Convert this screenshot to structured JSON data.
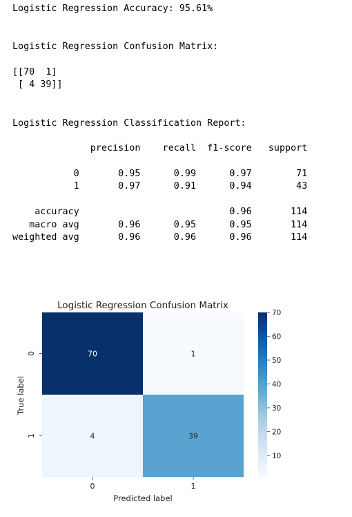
{
  "output": {
    "accuracy_line": "Logistic Regression Accuracy: 95.61%",
    "cm_title_line": "Logistic Regression Confusion Matrix:",
    "cm_row1": "[[70  1]",
    "cm_row2": " [ 4 39]]",
    "report_title_line": "Logistic Regression Classification Report:",
    "report_header": "              precision    recall  f1-score   support",
    "report_row0": "           0       0.95      0.99      0.97        71",
    "report_row1": "           1       0.97      0.91      0.94        43",
    "report_acc": "    accuracy                           0.96       114",
    "report_macro": "   macro avg       0.96      0.95      0.95       114",
    "report_weighted": "weighted avg       0.96      0.96      0.96       114"
  },
  "chart_data": {
    "type": "heatmap",
    "title": "Logistic Regression Confusion Matrix",
    "xlabel": "Predicted label",
    "ylabel": "True label",
    "x_categories": [
      "0",
      "1"
    ],
    "y_categories": [
      "0",
      "1"
    ],
    "values": [
      [
        70,
        1
      ],
      [
        4,
        39
      ]
    ],
    "colormap": "Blues",
    "colorbar_range": [
      1,
      70
    ],
    "colorbar_ticks": [
      10,
      20,
      30,
      40,
      50,
      60,
      70
    ],
    "annotate": true
  }
}
